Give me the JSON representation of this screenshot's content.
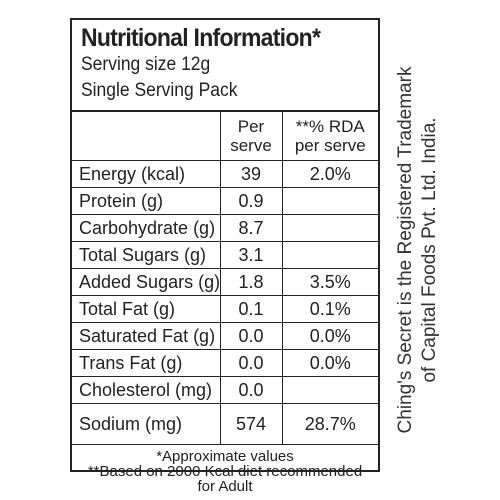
{
  "title": "Nutritional Information*",
  "serving_size": "Serving size 12g",
  "serving_pack": "Single Serving Pack",
  "headers": {
    "per_serve": [
      "Per",
      "serve"
    ],
    "rda": [
      "**% RDA",
      "per serve"
    ]
  },
  "rows": [
    {
      "name": "Energy (kcal)",
      "value": "39",
      "rda": "2.0%"
    },
    {
      "name": "Protein (g)",
      "value": "0.9",
      "rda": ""
    },
    {
      "name": "Carbohydrate (g)",
      "value": "8.7",
      "rda": ""
    },
    {
      "name": "Total Sugars (g)",
      "value": "3.1",
      "rda": ""
    },
    {
      "name": "Added Sugars (g)",
      "value": "1.8",
      "rda": "3.5%"
    },
    {
      "name": "Total Fat (g)",
      "value": "0.1",
      "rda": "0.1%"
    },
    {
      "name": "Saturated Fat (g)",
      "value": "0.0",
      "rda": "0.0%"
    },
    {
      "name": "Trans Fat (g)",
      "value": "0.0",
      "rda": "0.0%"
    },
    {
      "name": "Cholesterol (mg)",
      "value": "0.0",
      "rda": ""
    },
    {
      "name": "Sodium (mg)",
      "value": "574",
      "rda": "28.7%"
    }
  ],
  "footnotes": {
    "approx": "*Approximate values",
    "based_on": "**Based on 2000 Kcal diet recommended",
    "for_adult": "for Adult"
  },
  "trademark": {
    "line1": "Ching's Secret is the Registered Trademark",
    "line2": "of Capital Foods Pvt. Ltd. India."
  }
}
